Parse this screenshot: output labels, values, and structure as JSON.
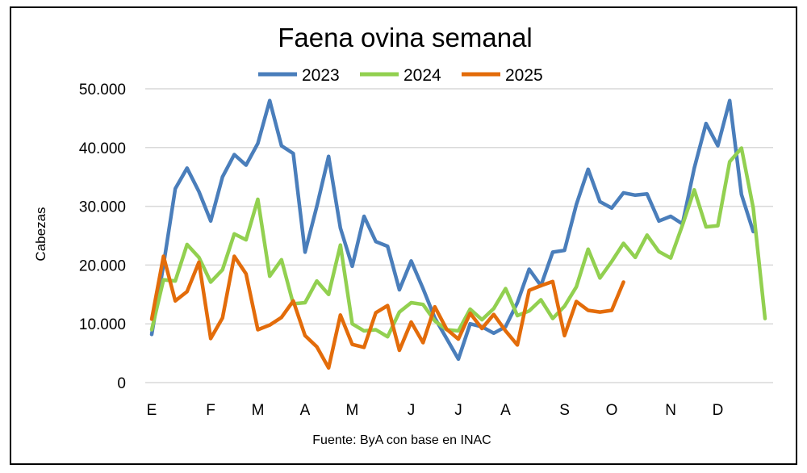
{
  "chart_data": {
    "type": "line",
    "title": "Faena ovina semanal",
    "ylabel": "Cabezas",
    "xlabel": "",
    "source": "Fuente: ByA con base en INAC",
    "ylim": [
      0,
      50000
    ],
    "yticks": [
      0,
      10000,
      20000,
      30000,
      40000,
      50000
    ],
    "ytick_labels": [
      "0",
      "10.000",
      "20.000",
      "30.000",
      "40.000",
      "50.000"
    ],
    "xlim": [
      1,
      53
    ],
    "month_labels": [
      "E",
      "F",
      "M",
      "A",
      "M",
      "J",
      "J",
      "A",
      "S",
      "O",
      "N",
      "D"
    ],
    "month_weeks": [
      1,
      6,
      10,
      14,
      18,
      23,
      27,
      31,
      36,
      40,
      45,
      49
    ],
    "grid": true,
    "legend": "top",
    "series": [
      {
        "name": "2023",
        "color": "#4a7ebb",
        "x": [
          1,
          2,
          3,
          4,
          5,
          6,
          7,
          8,
          9,
          10,
          11,
          12,
          13,
          14,
          15,
          16,
          17,
          18,
          19,
          20,
          21,
          22,
          23,
          24,
          25,
          26,
          27,
          28,
          29,
          30,
          31,
          32,
          33,
          34,
          35,
          36,
          37,
          38,
          39,
          40,
          41,
          42,
          43,
          44,
          45,
          46,
          47,
          48,
          49,
          50,
          51,
          52
        ],
        "values": [
          8200,
          20000,
          33000,
          36500,
          32500,
          27500,
          35000,
          38800,
          37000,
          40700,
          48000,
          40300,
          39000,
          22200,
          30000,
          38500,
          26300,
          19800,
          28300,
          24000,
          23200,
          15800,
          20700,
          16000,
          11000,
          7500,
          4000,
          10000,
          9500,
          8400,
          9500,
          13600,
          19300,
          16500,
          22200,
          22500,
          30300,
          36300,
          30800,
          29700,
          32300,
          31900,
          32100,
          27500,
          28300,
          27000,
          36500,
          44100,
          40300,
          48000,
          32000,
          25700
        ]
      },
      {
        "name": "2024",
        "color": "#92d050",
        "x": [
          1,
          2,
          3,
          4,
          5,
          6,
          7,
          8,
          9,
          10,
          11,
          12,
          13,
          14,
          15,
          16,
          17,
          18,
          19,
          20,
          21,
          22,
          23,
          24,
          25,
          26,
          27,
          28,
          29,
          30,
          31,
          32,
          33,
          34,
          35,
          36,
          37,
          38,
          39,
          40,
          41,
          42,
          43,
          44,
          45,
          46,
          47,
          48,
          49,
          50,
          51,
          52,
          53
        ],
        "values": [
          9000,
          17500,
          17300,
          23500,
          21300,
          17100,
          19200,
          25300,
          24300,
          31200,
          18100,
          20900,
          13400,
          13600,
          17300,
          15000,
          23400,
          10000,
          8800,
          9000,
          7800,
          12000,
          13600,
          13300,
          10500,
          9000,
          8800,
          12500,
          10700,
          12600,
          16000,
          11400,
          12200,
          14100,
          10900,
          13000,
          16300,
          22700,
          17800,
          20600,
          23700,
          21300,
          25100,
          22300,
          21200,
          26800,
          32800,
          26500,
          26700,
          37600,
          39900,
          29700,
          10900
        ]
      },
      {
        "name": "2025",
        "color": "#e36c0a",
        "x": [
          1,
          2,
          3,
          4,
          5,
          6,
          7,
          8,
          9,
          10,
          11,
          12,
          13,
          14,
          15,
          16,
          17,
          18,
          19,
          20,
          21,
          22,
          23,
          24,
          25,
          26,
          27,
          28,
          29,
          30,
          31,
          32,
          33,
          34,
          35,
          36,
          37,
          38,
          39,
          40,
          41
        ],
        "values": [
          10800,
          21500,
          13900,
          15500,
          20500,
          7500,
          11000,
          21500,
          18500,
          9000,
          9800,
          11100,
          13900,
          8000,
          6100,
          2500,
          11500,
          6500,
          6000,
          11900,
          13100,
          5500,
          10300,
          6800,
          12900,
          9100,
          7400,
          11800,
          9200,
          11600,
          8800,
          6400,
          15700,
          16500,
          17200,
          8000,
          13800,
          12300,
          12000,
          12300,
          17100
        ]
      }
    ]
  }
}
